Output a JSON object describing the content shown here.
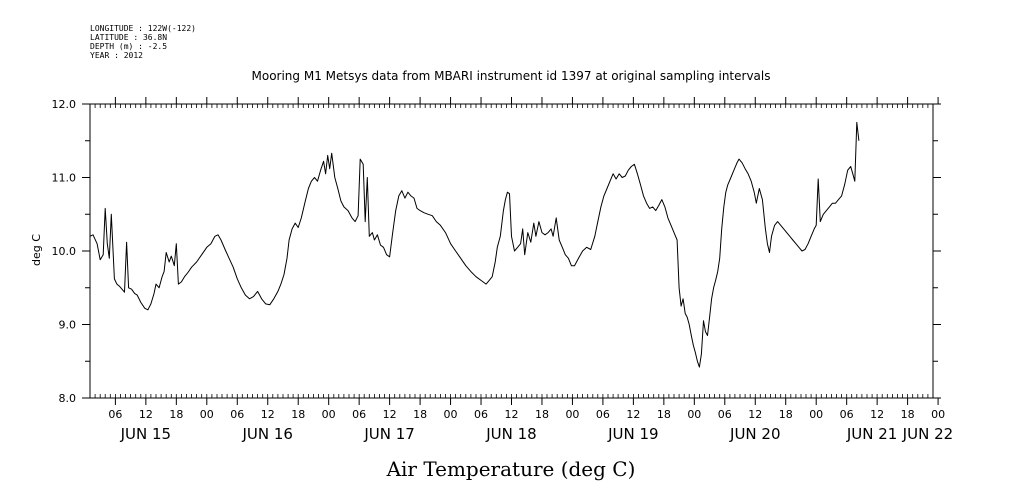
{
  "header": {
    "longitude": "LONGITUDE : 122W(-122)",
    "latitude": "LATITUDE : 36.8N",
    "depth": "DEPTH (m) : -2.5",
    "year": "YEAR : 2012"
  },
  "chart_data": {
    "type": "line",
    "title": "Mooring M1 Metsys data from MBARI instrument id 1397 at original sampling intervals",
    "xlabel": "Air Temperature (deg C)",
    "ylabel": "deg C",
    "ylim": [
      8.0,
      12.0
    ],
    "yticks": [
      "8.0",
      "9.0",
      "10.0",
      "11.0",
      "12.0"
    ],
    "x_units": "hours since JUN 14 2012 00:00",
    "xlim": [
      1,
      167
    ],
    "hour_ticks": [
      {
        "x": 6,
        "label": "06"
      },
      {
        "x": 12,
        "label": "12"
      },
      {
        "x": 18,
        "label": "18"
      },
      {
        "x": 24,
        "label": "00"
      },
      {
        "x": 30,
        "label": "06"
      },
      {
        "x": 36,
        "label": "12"
      },
      {
        "x": 42,
        "label": "18"
      },
      {
        "x": 48,
        "label": "00"
      },
      {
        "x": 54,
        "label": "06"
      },
      {
        "x": 60,
        "label": "12"
      },
      {
        "x": 66,
        "label": "18"
      },
      {
        "x": 72,
        "label": "00"
      },
      {
        "x": 78,
        "label": "06"
      },
      {
        "x": 84,
        "label": "12"
      },
      {
        "x": 90,
        "label": "18"
      },
      {
        "x": 96,
        "label": "00"
      },
      {
        "x": 102,
        "label": "06"
      },
      {
        "x": 108,
        "label": "12"
      },
      {
        "x": 114,
        "label": "18"
      },
      {
        "x": 120,
        "label": "00"
      },
      {
        "x": 126,
        "label": "06"
      },
      {
        "x": 132,
        "label": "12"
      },
      {
        "x": 138,
        "label": "18"
      },
      {
        "x": 144,
        "label": "00"
      },
      {
        "x": 150,
        "label": "06"
      },
      {
        "x": 156,
        "label": "12"
      },
      {
        "x": 162,
        "label": "18"
      },
      {
        "x": 168,
        "label": "00"
      }
    ],
    "day_labels": [
      {
        "x": 12,
        "label": "JUN 15"
      },
      {
        "x": 36,
        "label": "JUN 16"
      },
      {
        "x": 60,
        "label": "JUN 17"
      },
      {
        "x": 84,
        "label": "JUN 18"
      },
      {
        "x": 108,
        "label": "JUN 19"
      },
      {
        "x": 132,
        "label": "JUN 20"
      },
      {
        "x": 155,
        "label": "JUN 21"
      },
      {
        "x": 166,
        "label": "JUN 22"
      }
    ],
    "series": [
      {
        "values": [
          [
            1.0,
            10.2
          ],
          [
            1.6,
            10.22
          ],
          [
            2.4,
            10.1
          ],
          [
            3.0,
            9.88
          ],
          [
            3.6,
            9.95
          ],
          [
            4.0,
            10.58
          ],
          [
            4.4,
            10.1
          ],
          [
            4.8,
            9.9
          ],
          [
            5.2,
            10.5
          ],
          [
            5.8,
            9.62
          ],
          [
            6.3,
            9.55
          ],
          [
            6.8,
            9.52
          ],
          [
            7.3,
            9.48
          ],
          [
            7.8,
            9.44
          ],
          [
            8.2,
            10.12
          ],
          [
            8.6,
            9.5
          ],
          [
            9.2,
            9.48
          ],
          [
            9.8,
            9.42
          ],
          [
            10.3,
            9.4
          ],
          [
            11.0,
            9.3
          ],
          [
            11.8,
            9.22
          ],
          [
            12.4,
            9.2
          ],
          [
            13.0,
            9.28
          ],
          [
            13.6,
            9.42
          ],
          [
            14.0,
            9.55
          ],
          [
            14.6,
            9.5
          ],
          [
            15.2,
            9.65
          ],
          [
            15.6,
            9.72
          ],
          [
            16.0,
            9.98
          ],
          [
            16.6,
            9.85
          ],
          [
            17.0,
            9.93
          ],
          [
            17.6,
            9.8
          ],
          [
            18.0,
            10.1
          ],
          [
            18.4,
            9.55
          ],
          [
            19.0,
            9.58
          ],
          [
            19.6,
            9.65
          ],
          [
            20.2,
            9.7
          ],
          [
            21.0,
            9.78
          ],
          [
            22.0,
            9.85
          ],
          [
            23.0,
            9.95
          ],
          [
            24.0,
            10.05
          ],
          [
            24.8,
            10.1
          ],
          [
            25.6,
            10.2
          ],
          [
            26.2,
            10.22
          ],
          [
            26.8,
            10.15
          ],
          [
            27.6,
            10.02
          ],
          [
            28.4,
            9.9
          ],
          [
            29.2,
            9.78
          ],
          [
            30.0,
            9.62
          ],
          [
            30.8,
            9.5
          ],
          [
            31.6,
            9.4
          ],
          [
            32.4,
            9.35
          ],
          [
            33.2,
            9.38
          ],
          [
            34.0,
            9.45
          ],
          [
            34.8,
            9.35
          ],
          [
            35.6,
            9.28
          ],
          [
            36.4,
            9.27
          ],
          [
            37.2,
            9.35
          ],
          [
            38.0,
            9.45
          ],
          [
            38.6,
            9.55
          ],
          [
            39.2,
            9.68
          ],
          [
            39.8,
            9.9
          ],
          [
            40.2,
            10.15
          ],
          [
            40.8,
            10.3
          ],
          [
            41.4,
            10.38
          ],
          [
            42.0,
            10.32
          ],
          [
            42.6,
            10.45
          ],
          [
            43.4,
            10.68
          ],
          [
            44.0,
            10.85
          ],
          [
            44.6,
            10.95
          ],
          [
            45.2,
            11.0
          ],
          [
            45.8,
            10.95
          ],
          [
            46.4,
            11.1
          ],
          [
            47.0,
            11.22
          ],
          [
            47.4,
            11.05
          ],
          [
            47.8,
            11.3
          ],
          [
            48.2,
            11.12
          ],
          [
            48.6,
            11.33
          ],
          [
            49.2,
            11.0
          ],
          [
            49.8,
            10.85
          ],
          [
            50.4,
            10.68
          ],
          [
            51.0,
            10.6
          ],
          [
            51.8,
            10.55
          ],
          [
            52.6,
            10.45
          ],
          [
            53.2,
            10.4
          ],
          [
            53.8,
            10.48
          ],
          [
            54.2,
            11.25
          ],
          [
            54.8,
            11.18
          ],
          [
            55.2,
            10.4
          ],
          [
            55.6,
            11.0
          ],
          [
            56.0,
            10.2
          ],
          [
            56.6,
            10.25
          ],
          [
            57.0,
            10.15
          ],
          [
            57.6,
            10.22
          ],
          [
            58.2,
            10.08
          ],
          [
            58.8,
            10.05
          ],
          [
            59.4,
            9.95
          ],
          [
            60.0,
            9.92
          ],
          [
            60.6,
            10.25
          ],
          [
            61.2,
            10.55
          ],
          [
            61.8,
            10.75
          ],
          [
            62.4,
            10.82
          ],
          [
            63.0,
            10.72
          ],
          [
            63.6,
            10.8
          ],
          [
            64.2,
            10.75
          ],
          [
            64.8,
            10.72
          ],
          [
            65.4,
            10.58
          ],
          [
            66.0,
            10.55
          ],
          [
            66.8,
            10.52
          ],
          [
            67.6,
            10.5
          ],
          [
            68.4,
            10.48
          ],
          [
            69.2,
            10.4
          ],
          [
            70.0,
            10.35
          ],
          [
            71.0,
            10.25
          ],
          [
            72.0,
            10.1
          ],
          [
            73.0,
            10.0
          ],
          [
            74.0,
            9.9
          ],
          [
            75.0,
            9.8
          ],
          [
            76.0,
            9.72
          ],
          [
            77.0,
            9.65
          ],
          [
            78.0,
            9.6
          ],
          [
            79.0,
            9.55
          ],
          [
            79.6,
            9.6
          ],
          [
            80.2,
            9.65
          ],
          [
            80.8,
            9.85
          ],
          [
            81.2,
            10.05
          ],
          [
            81.8,
            10.2
          ],
          [
            82.4,
            10.55
          ],
          [
            82.8,
            10.7
          ],
          [
            83.2,
            10.8
          ],
          [
            83.6,
            10.78
          ],
          [
            84.0,
            10.2
          ],
          [
            84.6,
            10.0
          ],
          [
            85.2,
            10.05
          ],
          [
            85.8,
            10.1
          ],
          [
            86.2,
            10.3
          ],
          [
            86.6,
            9.95
          ],
          [
            87.2,
            10.25
          ],
          [
            87.8,
            10.12
          ],
          [
            88.4,
            10.38
          ],
          [
            88.8,
            10.2
          ],
          [
            89.4,
            10.4
          ],
          [
            90.0,
            10.25
          ],
          [
            90.6,
            10.22
          ],
          [
            91.2,
            10.25
          ],
          [
            91.8,
            10.3
          ],
          [
            92.2,
            10.2
          ],
          [
            92.8,
            10.45
          ],
          [
            93.4,
            10.15
          ],
          [
            94.0,
            10.05
          ],
          [
            94.6,
            9.95
          ],
          [
            95.2,
            9.9
          ],
          [
            95.8,
            9.8
          ],
          [
            96.4,
            9.8
          ],
          [
            97.2,
            9.9
          ],
          [
            98.0,
            10.0
          ],
          [
            98.8,
            10.05
          ],
          [
            99.6,
            10.02
          ],
          [
            100.4,
            10.2
          ],
          [
            101.0,
            10.4
          ],
          [
            101.6,
            10.6
          ],
          [
            102.2,
            10.75
          ],
          [
            102.8,
            10.85
          ],
          [
            103.4,
            10.95
          ],
          [
            104.0,
            11.05
          ],
          [
            104.6,
            10.98
          ],
          [
            105.2,
            11.05
          ],
          [
            105.8,
            11.0
          ],
          [
            106.4,
            11.02
          ],
          [
            107.0,
            11.1
          ],
          [
            107.6,
            11.15
          ],
          [
            108.2,
            11.18
          ],
          [
            108.8,
            11.05
          ],
          [
            109.4,
            10.9
          ],
          [
            110.0,
            10.75
          ],
          [
            110.6,
            10.65
          ],
          [
            111.2,
            10.58
          ],
          [
            111.8,
            10.6
          ],
          [
            112.4,
            10.55
          ],
          [
            113.0,
            10.62
          ],
          [
            113.6,
            10.7
          ],
          [
            114.2,
            10.6
          ],
          [
            114.8,
            10.45
          ],
          [
            115.4,
            10.35
          ],
          [
            116.0,
            10.25
          ],
          [
            116.6,
            10.15
          ],
          [
            117.0,
            9.5
          ],
          [
            117.4,
            9.25
          ],
          [
            117.8,
            9.35
          ],
          [
            118.2,
            9.15
          ],
          [
            118.6,
            9.1
          ],
          [
            119.0,
            9.0
          ],
          [
            119.4,
            8.85
          ],
          [
            119.8,
            8.72
          ],
          [
            120.2,
            8.62
          ],
          [
            120.6,
            8.5
          ],
          [
            121.0,
            8.42
          ],
          [
            121.4,
            8.6
          ],
          [
            121.8,
            9.05
          ],
          [
            122.2,
            8.9
          ],
          [
            122.6,
            8.85
          ],
          [
            123.0,
            9.1
          ],
          [
            123.4,
            9.35
          ],
          [
            123.8,
            9.5
          ],
          [
            124.2,
            9.6
          ],
          [
            124.6,
            9.72
          ],
          [
            125.0,
            9.9
          ],
          [
            125.4,
            10.3
          ],
          [
            125.8,
            10.6
          ],
          [
            126.2,
            10.8
          ],
          [
            126.6,
            10.9
          ],
          [
            127.2,
            11.0
          ],
          [
            127.8,
            11.1
          ],
          [
            128.4,
            11.2
          ],
          [
            128.8,
            11.25
          ],
          [
            129.4,
            11.2
          ],
          [
            130.0,
            11.12
          ],
          [
            130.6,
            11.05
          ],
          [
            131.2,
            10.95
          ],
          [
            131.8,
            10.8
          ],
          [
            132.2,
            10.65
          ],
          [
            132.8,
            10.85
          ],
          [
            133.4,
            10.7
          ],
          [
            134.0,
            10.3
          ],
          [
            134.4,
            10.1
          ],
          [
            134.8,
            9.98
          ],
          [
            135.2,
            10.2
          ],
          [
            135.8,
            10.35
          ],
          [
            136.4,
            10.4
          ],
          [
            137.0,
            10.35
          ],
          [
            137.6,
            10.3
          ],
          [
            138.2,
            10.25
          ],
          [
            138.8,
            10.2
          ],
          [
            139.4,
            10.15
          ],
          [
            140.0,
            10.1
          ],
          [
            140.6,
            10.05
          ],
          [
            141.2,
            10.0
          ],
          [
            141.8,
            10.02
          ],
          [
            142.4,
            10.1
          ],
          [
            143.0,
            10.2
          ],
          [
            143.6,
            10.3
          ],
          [
            144.0,
            10.35
          ],
          [
            144.4,
            10.98
          ],
          [
            144.8,
            10.4
          ],
          [
            145.4,
            10.5
          ],
          [
            146.0,
            10.55
          ],
          [
            146.6,
            10.6
          ],
          [
            147.2,
            10.65
          ],
          [
            147.8,
            10.65
          ],
          [
            148.4,
            10.7
          ],
          [
            149.0,
            10.75
          ],
          [
            149.6,
            10.9
          ],
          [
            150.2,
            11.1
          ],
          [
            150.8,
            11.15
          ],
          [
            151.2,
            11.05
          ],
          [
            151.6,
            10.95
          ],
          [
            152.0,
            11.75
          ],
          [
            152.4,
            11.5
          ]
        ]
      }
    ]
  }
}
